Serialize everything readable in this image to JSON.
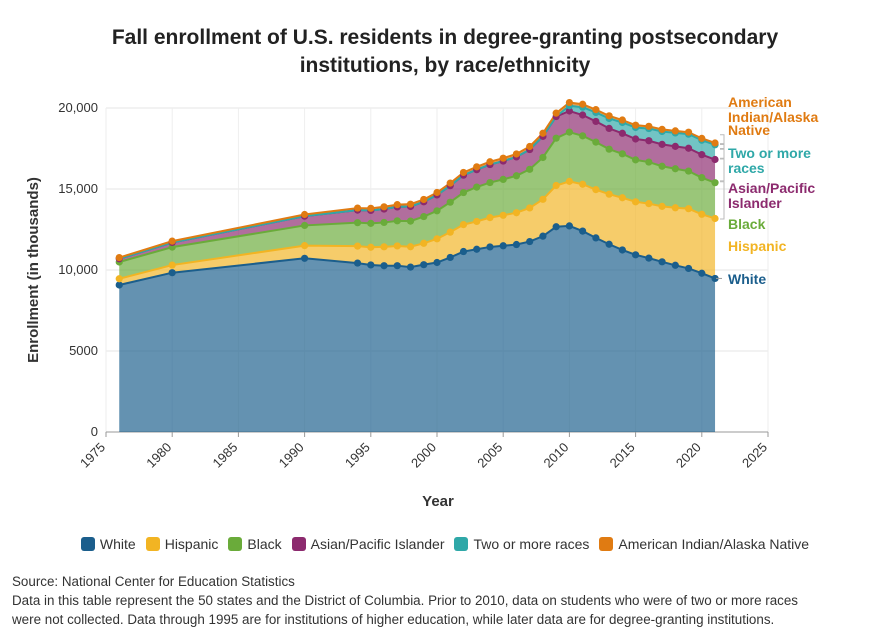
{
  "chart_data": {
    "type": "area",
    "stacked": true,
    "title_line1": "Fall enrollment of U.S. residents in degree-granting postsecondary",
    "title_line2": "institutions, by race/ethnicity",
    "xlabel": "Year",
    "ylabel": "Enrollment (in thousands)",
    "xlim": [
      1975,
      2025
    ],
    "ylim": [
      0,
      20000
    ],
    "xticks": [
      1975,
      1980,
      1985,
      1990,
      1995,
      2000,
      2005,
      2010,
      2015,
      2020,
      2025
    ],
    "yticks": [
      0,
      5000,
      10000,
      15000,
      20000
    ],
    "ytick_labels": [
      "0",
      "5000",
      "10,000",
      "15,000",
      "20,000"
    ],
    "grid": true,
    "legend_position": "bottom",
    "x": [
      1976,
      1980,
      1990,
      1994,
      1995,
      1996,
      1997,
      1998,
      1999,
      2000,
      2001,
      2002,
      2003,
      2004,
      2005,
      2006,
      2007,
      2008,
      2009,
      2010,
      2011,
      2012,
      2013,
      2014,
      2015,
      2016,
      2017,
      2018,
      2019,
      2020,
      2021
    ],
    "series": [
      {
        "name": "White",
        "color": "#1b5e8c",
        "label_line1": "White",
        "label_line2": "",
        "label_line3": "",
        "values": [
          9076,
          9833,
          10722,
          10427,
          10311,
          10264,
          10266,
          10179,
          10329,
          10462,
          10775,
          11140,
          11281,
          11423,
          11495,
          11572,
          11756,
          12089,
          12669,
          12722,
          12402,
          11981,
          11590,
          11236,
          10936,
          10734,
          10504,
          10291,
          10096,
          9800,
          9480
        ]
      },
      {
        "name": "Hispanic",
        "color": "#f2b423",
        "label_line1": "Hispanic",
        "label_line2": "",
        "label_line3": "",
        "values": [
          384,
          472,
          782,
          1046,
          1094,
          1166,
          1218,
          1257,
          1320,
          1462,
          1561,
          1662,
          1716,
          1810,
          1882,
          1964,
          2076,
          2273,
          2547,
          2749,
          2891,
          2980,
          3091,
          3224,
          3273,
          3363,
          3424,
          3550,
          3690,
          3640,
          3700
        ]
      },
      {
        "name": "Black",
        "color": "#6aab3a",
        "label_line1": "Black",
        "label_line2": "",
        "label_line3": "",
        "values": [
          1033,
          1107,
          1247,
          1449,
          1474,
          1506,
          1551,
          1583,
          1649,
          1730,
          1850,
          1979,
          2121,
          2165,
          2215,
          2280,
          2383,
          2584,
          2920,
          3039,
          2988,
          2932,
          2778,
          2711,
          2588,
          2565,
          2476,
          2410,
          2320,
          2260,
          2210
        ]
      },
      {
        "name": "Asian/Pacific Islander",
        "color": "#8c2a6e",
        "label_line1": "Asian/Pacific",
        "label_line2": "Islander",
        "label_line3": "",
        "values": [
          198,
          286,
          572,
          774,
          797,
          828,
          859,
          900,
          910,
          978,
          1019,
          1074,
          1076,
          1109,
          1134,
          1165,
          1218,
          1303,
          1338,
          1304,
          1287,
          1279,
          1281,
          1269,
          1289,
          1318,
          1350,
          1380,
          1410,
          1420,
          1430
        ]
      },
      {
        "name": "Two or more races",
        "color": "#2fa8a8",
        "label_line1": "Two or more",
        "label_line2": "races",
        "label_line3": "",
        "values": [
          0,
          0,
          0,
          0,
          0,
          0,
          0,
          0,
          0,
          0,
          0,
          0,
          0,
          0,
          0,
          0,
          0,
          0,
          0,
          325,
          481,
          554,
          612,
          666,
          710,
          750,
          795,
          830,
          870,
          890,
          910
        ]
      },
      {
        "name": "American Indian/Alaska Native",
        "color": "#e07b12",
        "label_line1": "American",
        "label_line2": "Indian/Alaska",
        "label_line3": "Native",
        "values": [
          76,
          84,
          103,
          127,
          131,
          138,
          142,
          144,
          145,
          151,
          158,
          166,
          173,
          176,
          176,
          181,
          190,
          193,
          208,
          196,
          182,
          173,
          163,
          152,
          144,
          139,
          131,
          125,
          120,
          115,
          110
        ]
      }
    ]
  },
  "footer": {
    "source": "Source: National Center for Education Statistics",
    "note_line1": "Data in this table represent the 50 states and the District of Columbia. Prior to 2010, data on students who were of two or more races",
    "note_line2": "were not collected. Data through 1995 are for institutions of higher education, while later data are for degree-granting institutions."
  }
}
